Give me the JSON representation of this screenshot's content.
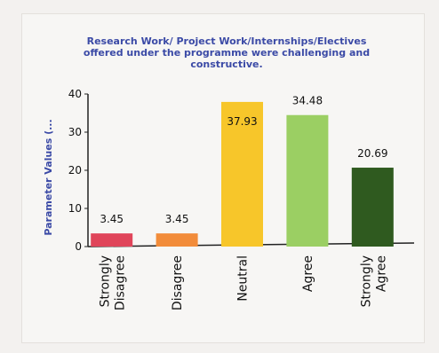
{
  "chart_data": {
    "type": "bar",
    "title_lines": [
      "Research Work/ Project Work/Internships/Electives",
      "offered under the programme were challenging and",
      "constructive."
    ],
    "ylabel": "Parameter Values (...",
    "xlabel": "",
    "ylim": [
      0,
      40
    ],
    "yticks": [
      "0",
      "10",
      "20",
      "30",
      "40"
    ],
    "categories": [
      [
        "Strongly",
        "Disagree"
      ],
      [
        "Disagree"
      ],
      [
        "Neutral"
      ],
      [
        "Agree"
      ],
      [
        "Strongly",
        "Agree"
      ]
    ],
    "values": [
      3.45,
      3.45,
      37.93,
      34.48,
      20.69
    ],
    "value_labels": [
      "3.45",
      "3.45",
      "37.93",
      "34.48",
      "20.69"
    ],
    "colors": [
      "#e0455a",
      "#f28c3a",
      "#f7c62a",
      "#9bcf63",
      "#2f5a1f"
    ],
    "grid": false,
    "legend": "none"
  }
}
